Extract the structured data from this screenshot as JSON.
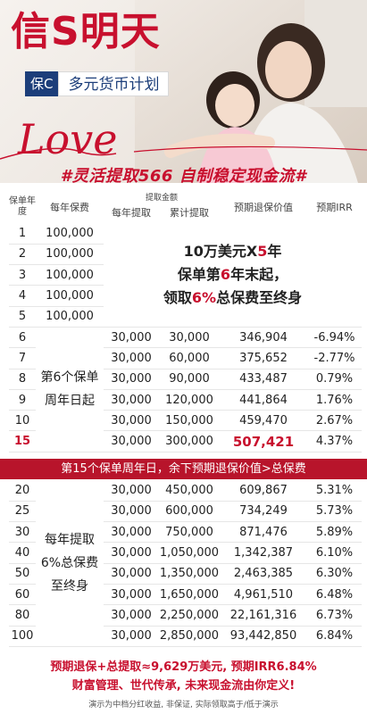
{
  "hero": {
    "brand": "信S明天",
    "tag": "保C",
    "plan_name": "多元货币计划",
    "love_text": "Love",
    "slogan": "#灵活提取566 自制稳定现金流#"
  },
  "table_header": {
    "year": "保单年度",
    "premium": "每年保费",
    "withdraw_group": "提取金额",
    "annual": "每年提取",
    "cumulative": "累计提取",
    "surrender": "预期退保价值",
    "irr": "预期IRR"
  },
  "premium_rows": [
    {
      "year": "1",
      "premium": "100,000"
    },
    {
      "year": "2",
      "premium": "100,000"
    },
    {
      "year": "3",
      "premium": "100,000"
    },
    {
      "year": "4",
      "premium": "100,000"
    },
    {
      "year": "5",
      "premium": "100,000"
    }
  ],
  "premium_note": {
    "line1_a": "10万美元X",
    "line1_b": "5",
    "line1_c": "年",
    "line2_a": "保单第",
    "line2_b": "6",
    "line2_c": "年末起，",
    "line3_a": "领取",
    "line3_b": "6%",
    "line3_c": "总保费至终身"
  },
  "mid_note": "第6个保单周年日起",
  "mid_rows": [
    {
      "year": "6",
      "annual": "30,000",
      "cumulative": "30,000",
      "surrender": "346,904",
      "irr": "-6.94%"
    },
    {
      "year": "7",
      "annual": "30,000",
      "cumulative": "60,000",
      "surrender": "375,652",
      "irr": "-2.77%"
    },
    {
      "year": "8",
      "annual": "30,000",
      "cumulative": "90,000",
      "surrender": "433,487",
      "irr": "0.79%"
    },
    {
      "year": "9",
      "annual": "30,000",
      "cumulative": "120,000",
      "surrender": "441,864",
      "irr": "1.76%"
    },
    {
      "year": "10",
      "annual": "30,000",
      "cumulative": "150,000",
      "surrender": "459,470",
      "irr": "2.67%"
    },
    {
      "year": "15",
      "annual": "30,000",
      "cumulative": "300,000",
      "surrender": "507,421",
      "irr": "4.37%"
    }
  ],
  "banner": "第15个保单周年日，余下预期退保价值>总保费",
  "low_note": "每年提取6%总保费至终身",
  "low_note_lines": [
    "每年提取",
    "6%总保费",
    "至终身"
  ],
  "low_rows": [
    {
      "year": "20",
      "annual": "30,000",
      "cumulative": "450,000",
      "surrender": "609,867",
      "irr": "5.31%"
    },
    {
      "year": "25",
      "annual": "30,000",
      "cumulative": "600,000",
      "surrender": "734,249",
      "irr": "5.73%"
    },
    {
      "year": "30",
      "annual": "30,000",
      "cumulative": "750,000",
      "surrender": "871,476",
      "irr": "5.89%"
    },
    {
      "year": "40",
      "annual": "30,000",
      "cumulative": "1,050,000",
      "surrender": "1,342,387",
      "irr": "6.10%"
    },
    {
      "year": "50",
      "annual": "30,000",
      "cumulative": "1,350,000",
      "surrender": "2,463,385",
      "irr": "6.30%"
    },
    {
      "year": "60",
      "annual": "30,000",
      "cumulative": "1,650,000",
      "surrender": "4,961,510",
      "irr": "6.48%"
    },
    {
      "year": "80",
      "annual": "30,000",
      "cumulative": "2,250,000",
      "surrender": "22,161,316",
      "irr": "6.73%"
    },
    {
      "year": "100",
      "annual": "30,000",
      "cumulative": "2,850,000",
      "surrender": "93,442,850",
      "irr": "6.84%"
    }
  ],
  "footer": {
    "summary": "预期退保+总提取≈9,629万美元, 预期IRR6.84%",
    "tagline": "财富管理、世代传承, 未来现金流由你定义!",
    "disclaimer": "演示为中档分红收益, 非保证, 实际领取高于/低于演示"
  },
  "colors": {
    "brand_red": "#c8102e",
    "banner_red": "#b8142b",
    "navy": "#1c3e7a"
  }
}
